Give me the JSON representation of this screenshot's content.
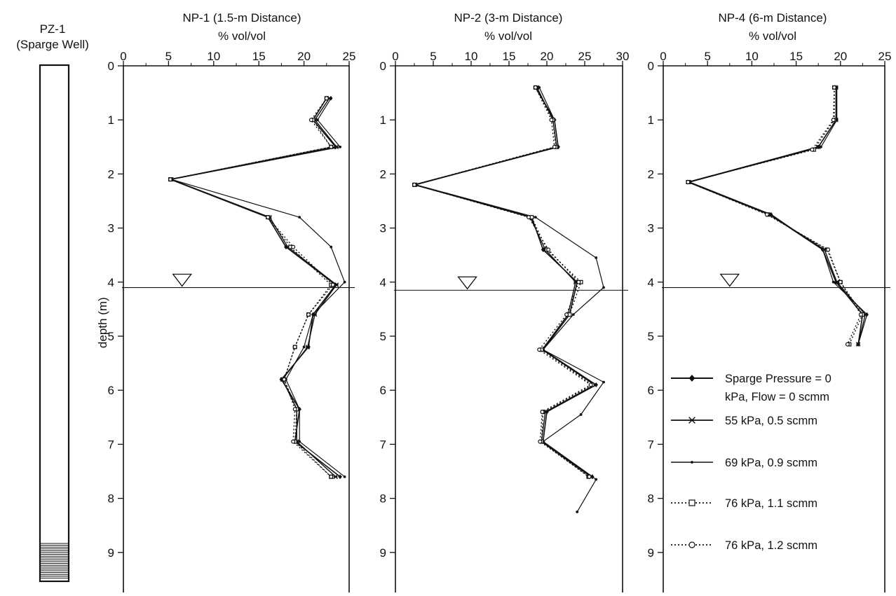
{
  "chart_data": [
    {
      "type": "line",
      "title": "PZ-1",
      "subtitle": "(Sparge Well)"
    },
    {
      "type": "line",
      "title": "NP-1 (1.5-m Distance)",
      "xlabel": "% vol/vol",
      "ylabel": "depth (m)",
      "xlim": [
        0,
        25
      ],
      "ylim": [
        0,
        9.6
      ],
      "y_inverted": true,
      "xticks": [
        0,
        5,
        10,
        15,
        20,
        25
      ],
      "yticks": [
        0,
        1,
        2,
        3,
        4,
        5,
        6,
        7,
        8,
        9
      ],
      "water_table_depth": 4.1,
      "water_table_marker_x": 6.5,
      "series": [
        {
          "name": "Sparge Pressure = 0 kPa, Flow = 0 scmm",
          "style": "diamond-solid",
          "x": [
            22.5,
            21.0,
            23.5,
            5.2,
            16.0,
            18.0,
            23.5,
            21.0,
            20.5,
            17.5,
            19.5,
            19.0,
            24.0
          ],
          "y": [
            0.6,
            1.0,
            1.5,
            2.1,
            2.8,
            3.35,
            4.05,
            4.6,
            5.2,
            5.8,
            6.35,
            6.95,
            7.6
          ]
        },
        {
          "name": "55 kPa, 0.5 scmm",
          "style": "star-solid",
          "x": [
            22.8,
            21.2,
            23.6,
            5.3,
            16.2,
            18.2,
            23.6,
            21.2,
            20.4,
            17.6,
            19.2,
            19.2,
            23.5
          ],
          "y": [
            0.6,
            1.0,
            1.5,
            2.1,
            2.8,
            3.35,
            4.05,
            4.6,
            5.2,
            5.8,
            6.35,
            6.95,
            7.6
          ]
        },
        {
          "name": "69 kPa, 0.9 scmm",
          "style": "dot-solid",
          "x": [
            23.0,
            21.5,
            24.0,
            5.3,
            19.5,
            23.0,
            24.5,
            21.0,
            20.0,
            18.0,
            19.5,
            19.5,
            24.5
          ],
          "y": [
            0.6,
            1.0,
            1.5,
            2.1,
            2.8,
            3.35,
            4.0,
            4.6,
            5.2,
            5.8,
            6.35,
            6.95,
            7.6
          ]
        },
        {
          "name": "76 kPa, 1.1 scmm",
          "style": "square-dotted",
          "x": [
            22.5,
            21.0,
            23.0,
            5.2,
            16.0,
            18.5,
            23.0,
            20.5,
            19.0,
            17.8,
            19.2,
            19.0,
            23.0
          ],
          "y": [
            0.6,
            1.0,
            1.5,
            2.1,
            2.8,
            3.35,
            4.05,
            4.6,
            5.2,
            5.8,
            6.35,
            6.95,
            7.6
          ]
        },
        {
          "name": "76 kPa, 1.2 scmm",
          "style": "circle-dotted",
          "x": [
            22.5,
            20.8,
            23.0,
            5.2,
            16.0,
            18.8,
            23.2,
            20.5,
            19.0,
            17.8,
            19.0,
            18.8,
            23.0
          ],
          "y": [
            0.6,
            1.0,
            1.5,
            2.1,
            2.8,
            3.35,
            4.05,
            4.6,
            5.2,
            5.8,
            6.35,
            6.95,
            7.6
          ]
        }
      ]
    },
    {
      "type": "line",
      "title": "NP-2 (3-m Distance)",
      "xlabel": "% vol/vol",
      "xlim": [
        0,
        30
      ],
      "ylim": [
        0,
        9.6
      ],
      "y_inverted": true,
      "xticks": [
        0,
        5,
        10,
        15,
        20,
        25,
        30
      ],
      "yticks": [
        0,
        1,
        2,
        3,
        4,
        5,
        6,
        7,
        8,
        9
      ],
      "water_table_depth": 4.15,
      "water_table_marker_x": 9.5,
      "series": [
        {
          "name": "Sparge Pressure = 0 kPa, Flow = 0 scmm",
          "style": "diamond-solid",
          "x": [
            18.5,
            21.0,
            21.5,
            2.5,
            18.0,
            19.5,
            24.0,
            23.0,
            19.5,
            26.5,
            20.0,
            19.5,
            26.0
          ],
          "y": [
            0.4,
            1.0,
            1.5,
            2.2,
            2.8,
            3.4,
            4.0,
            4.6,
            5.25,
            5.9,
            6.4,
            6.95,
            7.6
          ]
        },
        {
          "name": "55 kPa, 0.5 scmm",
          "style": "star-solid",
          "x": [
            18.7,
            20.8,
            21.3,
            2.6,
            17.8,
            19.8,
            23.8,
            22.8,
            19.4,
            26.3,
            19.8,
            19.3,
            25.8
          ],
          "y": [
            0.4,
            1.0,
            1.5,
            2.2,
            2.8,
            3.4,
            4.0,
            4.6,
            5.25,
            5.9,
            6.4,
            6.95,
            7.6
          ]
        },
        {
          "name": "69 kPa, 0.9 scmm",
          "style": "dot-solid",
          "x": [
            19.0,
            21.0,
            21.5,
            2.7,
            18.5,
            26.5,
            27.5,
            23.5,
            19.5,
            27.5,
            24.5,
            19.5,
            26.5,
            24.0
          ],
          "y": [
            0.4,
            1.0,
            1.5,
            2.2,
            2.8,
            3.55,
            4.1,
            4.6,
            5.25,
            5.85,
            6.45,
            6.95,
            7.65,
            8.25
          ]
        },
        {
          "name": "76 kPa, 1.1 scmm",
          "style": "square-dotted",
          "x": [
            18.5,
            20.8,
            21.2,
            2.5,
            18.0,
            20.0,
            24.5,
            23.0,
            19.3,
            26.0,
            19.5,
            19.3,
            25.5
          ],
          "y": [
            0.4,
            1.0,
            1.5,
            2.2,
            2.8,
            3.4,
            4.0,
            4.6,
            5.25,
            5.9,
            6.4,
            6.95,
            7.6
          ]
        },
        {
          "name": "76 kPa, 1.2 scmm",
          "style": "circle-dotted",
          "x": [
            18.5,
            20.6,
            21.0,
            2.5,
            17.6,
            20.2,
            24.2,
            22.6,
            19.0,
            25.8,
            19.4,
            19.1,
            25.6
          ],
          "y": [
            0.4,
            1.0,
            1.5,
            2.2,
            2.8,
            3.4,
            4.0,
            4.6,
            5.25,
            5.9,
            6.4,
            6.95,
            7.6
          ]
        }
      ]
    },
    {
      "type": "line",
      "title": "NP-4 (6-m Distance)",
      "xlabel": "% vol/vol",
      "xlim": [
        0,
        25
      ],
      "ylim": [
        0,
        9.6
      ],
      "y_inverted": true,
      "xticks": [
        0,
        5,
        10,
        15,
        20,
        25
      ],
      "yticks": [
        0,
        1,
        2,
        3,
        4,
        5,
        6,
        7,
        8,
        9
      ],
      "water_table_depth": 4.1,
      "water_table_marker_x": 7.5,
      "series": [
        {
          "name": "Sparge Pressure = 0 kPa, Flow = 0 scmm",
          "style": "diamond-solid",
          "x": [
            19.5,
            19.5,
            17.5,
            2.8,
            12.0,
            18.0,
            19.5,
            22.5,
            22.0
          ],
          "y": [
            0.4,
            1.0,
            1.5,
            2.15,
            2.75,
            3.4,
            4.0,
            4.6,
            5.15
          ]
        },
        {
          "name": "55 kPa, 0.5 scmm",
          "style": "star-solid",
          "x": [
            19.5,
            19.5,
            17.5,
            2.9,
            12.0,
            18.2,
            19.6,
            22.8,
            22.0
          ],
          "y": [
            0.4,
            1.0,
            1.5,
            2.15,
            2.75,
            3.4,
            4.0,
            4.6,
            5.15
          ]
        },
        {
          "name": "69 kPa, 0.9 scmm",
          "style": "dot-solid",
          "x": [
            19.6,
            19.6,
            17.8,
            3.0,
            12.2,
            18.0,
            19.2,
            23.0,
            22.0
          ],
          "y": [
            0.4,
            1.0,
            1.5,
            2.15,
            2.75,
            3.4,
            4.0,
            4.6,
            5.15
          ]
        },
        {
          "name": "76 kPa, 1.1 scmm",
          "style": "square-dotted",
          "x": [
            19.3,
            19.3,
            17.0,
            2.8,
            11.8,
            18.5,
            20.0,
            22.5,
            21.0
          ],
          "y": [
            0.4,
            1.0,
            1.55,
            2.15,
            2.75,
            3.4,
            4.0,
            4.6,
            5.15
          ]
        },
        {
          "name": "76 kPa, 1.2 scmm",
          "style": "circle-dotted",
          "x": [
            19.3,
            19.2,
            16.8,
            2.8,
            11.7,
            18.6,
            20.0,
            22.3,
            20.8
          ],
          "y": [
            0.4,
            1.0,
            1.55,
            2.15,
            2.75,
            3.4,
            4.0,
            4.6,
            5.15
          ]
        }
      ]
    }
  ],
  "legend": [
    {
      "style": "diamond-solid",
      "text": [
        "Sparge Pressure = 0",
        "kPa, Flow = 0 scmm"
      ]
    },
    {
      "style": "star-solid",
      "text": [
        "55 kPa, 0.5 scmm"
      ]
    },
    {
      "style": "dot-solid",
      "text": [
        "69 kPa, 0.9 scmm"
      ]
    },
    {
      "style": "square-dotted",
      "text": [
        "76 kPa, 1.1 scmm"
      ]
    },
    {
      "style": "circle-dotted",
      "text": [
        "76 kPa, 1.2 scmm"
      ]
    }
  ]
}
